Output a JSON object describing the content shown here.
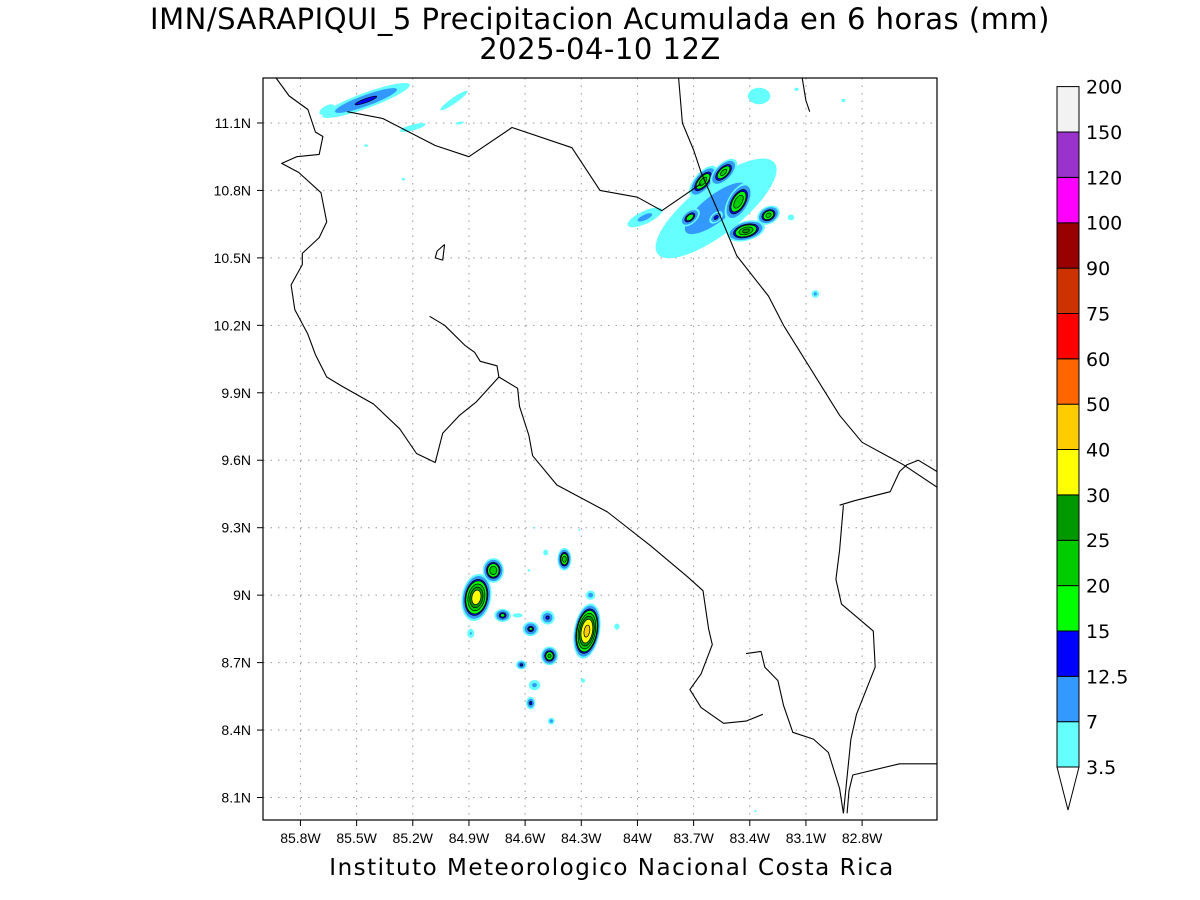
{
  "title": "IMN/SARAPIQUI_5 Precipitacion Acumulada en 6 horas (mm)",
  "subtitle": "2025-04-10 12Z",
  "footer": "Instituto Meteorologico Nacional Costa Rica",
  "map": {
    "lon_range": [
      -86.0,
      -82.4
    ],
    "lat_range": [
      8.0,
      11.3
    ],
    "lon_ticks": [
      {
        "value": -85.8,
        "label": "85.8W"
      },
      {
        "value": -85.5,
        "label": "85.5W"
      },
      {
        "value": -85.2,
        "label": "85.2W"
      },
      {
        "value": -84.9,
        "label": "84.9W"
      },
      {
        "value": -84.6,
        "label": "84.6W"
      },
      {
        "value": -84.3,
        "label": "84.3W"
      },
      {
        "value": -84.0,
        "label": "84W"
      },
      {
        "value": -83.7,
        "label": "83.7W"
      },
      {
        "value": -83.4,
        "label": "83.4W"
      },
      {
        "value": -83.1,
        "label": "83.1W"
      },
      {
        "value": -82.8,
        "label": "82.8W"
      }
    ],
    "lat_ticks": [
      {
        "value": 8.1,
        "label": "8.1N"
      },
      {
        "value": 8.4,
        "label": "8.4N"
      },
      {
        "value": 8.7,
        "label": "8.7N"
      },
      {
        "value": 9.0,
        "label": "9N"
      },
      {
        "value": 9.3,
        "label": "9.3N"
      },
      {
        "value": 9.6,
        "label": "9.6N"
      },
      {
        "value": 9.9,
        "label": "9.9N"
      },
      {
        "value": 10.2,
        "label": "10.2N"
      },
      {
        "value": 10.5,
        "label": "10.5N"
      },
      {
        "value": 10.8,
        "label": "10.8N"
      },
      {
        "value": 11.1,
        "label": "11.1N"
      }
    ],
    "grid": "dotted",
    "coastline": [
      [
        [
          -85.93,
          11.3
        ],
        [
          -85.86,
          11.22
        ],
        [
          -85.76,
          11.16
        ],
        [
          -85.72,
          11.06
        ],
        [
          -85.68,
          11.04
        ],
        [
          -85.7,
          10.96
        ],
        [
          -85.82,
          10.95
        ],
        [
          -85.9,
          10.92
        ],
        [
          -85.81,
          10.88
        ],
        [
          -85.69,
          10.79
        ],
        [
          -85.66,
          10.66
        ],
        [
          -85.7,
          10.59
        ],
        [
          -85.79,
          10.52
        ],
        [
          -85.79,
          10.47
        ],
        [
          -85.85,
          10.38
        ],
        [
          -85.83,
          10.27
        ],
        [
          -85.76,
          10.16
        ],
        [
          -85.72,
          10.07
        ],
        [
          -85.66,
          9.97
        ],
        [
          -85.58,
          9.93
        ],
        [
          -85.41,
          9.85
        ],
        [
          -85.27,
          9.74
        ],
        [
          -85.18,
          9.63
        ],
        [
          -85.08,
          9.59
        ],
        [
          -85.04,
          9.72
        ],
        [
          -84.95,
          9.8
        ],
        [
          -84.86,
          9.86
        ],
        [
          -84.74,
          9.97
        ],
        [
          -84.75,
          10.02
        ],
        [
          -84.84,
          10.04
        ],
        [
          -84.87,
          10.08
        ],
        [
          -84.92,
          10.11
        ],
        [
          -85.03,
          10.2
        ],
        [
          -85.11,
          10.24
        ]
      ],
      [
        [
          -84.74,
          9.97
        ],
        [
          -84.64,
          9.92
        ],
        [
          -84.63,
          9.84
        ],
        [
          -84.58,
          9.71
        ],
        [
          -84.56,
          9.62
        ],
        [
          -84.43,
          9.49
        ],
        [
          -84.16,
          9.37
        ],
        [
          -83.93,
          9.22
        ],
        [
          -83.73,
          9.08
        ],
        [
          -83.65,
          9.02
        ],
        [
          -83.62,
          8.85
        ],
        [
          -83.6,
          8.78
        ],
        [
          -83.66,
          8.65
        ],
        [
          -83.72,
          8.58
        ],
        [
          -83.66,
          8.5
        ],
        [
          -83.54,
          8.43
        ],
        [
          -83.42,
          8.44
        ],
        [
          -83.33,
          8.47
        ]
      ],
      [
        [
          -83.42,
          8.74
        ],
        [
          -83.34,
          8.75
        ],
        [
          -83.32,
          8.68
        ],
        [
          -83.25,
          8.62
        ],
        [
          -83.22,
          8.51
        ],
        [
          -83.17,
          8.39
        ],
        [
          -83.06,
          8.36
        ],
        [
          -82.98,
          8.3
        ],
        [
          -82.92,
          8.14
        ],
        [
          -82.9,
          8.03
        ]
      ],
      [
        [
          -82.88,
          8.03
        ],
        [
          -82.87,
          8.13
        ],
        [
          -82.85,
          8.2
        ],
        [
          -82.6,
          8.25
        ],
        [
          -82.4,
          8.25
        ]
      ],
      [
        [
          -82.4,
          9.55
        ],
        [
          -82.5,
          9.6
        ],
        [
          -82.56,
          9.58
        ],
        [
          -82.6,
          9.55
        ],
        [
          -82.65,
          9.46
        ],
        [
          -82.84,
          9.42
        ],
        [
          -82.92,
          9.4
        ]
      ],
      [
        [
          -83.12,
          11.3
        ],
        [
          -83.1,
          11.2
        ],
        [
          -83.08,
          11.15
        ]
      ],
      [
        [
          -83.78,
          11.3
        ],
        [
          -83.76,
          11.1
        ],
        [
          -83.7,
          10.98
        ],
        [
          -83.66,
          10.88
        ],
        [
          -83.55,
          10.67
        ],
        [
          -83.47,
          10.51
        ],
        [
          -83.3,
          10.33
        ],
        [
          -83.22,
          10.2
        ],
        [
          -82.92,
          9.8
        ],
        [
          -82.8,
          9.68
        ],
        [
          -82.58,
          9.58
        ],
        [
          -82.4,
          9.48
        ]
      ],
      [
        [
          -85.03,
          10.56
        ],
        [
          -85.07,
          10.53
        ],
        [
          -85.08,
          10.5
        ],
        [
          -85.04,
          10.49
        ],
        [
          -85.03,
          10.56
        ]
      ]
    ],
    "borders": [
      [
        [
          -85.55,
          11.15
        ],
        [
          -85.36,
          11.12
        ],
        [
          -85.08,
          11.0
        ],
        [
          -84.9,
          10.95
        ],
        [
          -84.67,
          11.08
        ],
        [
          -84.35,
          10.99
        ],
        [
          -84.2,
          10.8
        ],
        [
          -84.0,
          10.77
        ],
        [
          -83.87,
          10.71
        ],
        [
          -83.66,
          10.83
        ]
      ],
      [
        [
          -82.9,
          9.4
        ],
        [
          -82.92,
          9.2
        ],
        [
          -82.94,
          9.07
        ],
        [
          -82.91,
          8.96
        ],
        [
          -82.74,
          8.84
        ],
        [
          -82.73,
          8.68
        ],
        [
          -82.83,
          8.47
        ],
        [
          -82.86,
          8.36
        ],
        [
          -82.9,
          8.03
        ]
      ]
    ]
  },
  "precipitation": {
    "units": "mm",
    "levels": [
      3.5,
      7,
      12.5,
      15,
      20,
      25,
      30,
      40,
      50,
      60,
      75,
      90,
      100,
      120,
      150,
      200
    ],
    "colors": [
      "#66ffff",
      "#3399ff",
      "#0000ff",
      "#00ff00",
      "#00cc00",
      "#009900",
      "#ffff00",
      "#ffcc00",
      "#ff6600",
      "#ff0000",
      "#cc3300",
      "#990000",
      "#ff00ff",
      "#9933cc",
      "#f2f2f2",
      "#999999"
    ],
    "cells": [
      {
        "lon": -85.45,
        "lat": 11.2,
        "rx": 60,
        "ry": 10,
        "rot": -20,
        "max": 13
      },
      {
        "lon": -85.66,
        "lat": 11.16,
        "rx": 20,
        "ry": 9,
        "rot": -30,
        "max": 5
      },
      {
        "lon": -85.2,
        "lat": 11.08,
        "rx": 32,
        "ry": 7,
        "rot": -15,
        "max": 5
      },
      {
        "lon": -84.98,
        "lat": 11.2,
        "rx": 40,
        "ry": 7,
        "rot": -35,
        "max": 5
      },
      {
        "lon": -84.95,
        "lat": 11.1,
        "rx": 16,
        "ry": 5,
        "rot": -10,
        "max": 4
      },
      {
        "lon": -85.45,
        "lat": 11.0,
        "rx": 7,
        "ry": 5,
        "rot": 0,
        "max": 4
      },
      {
        "lon": -85.25,
        "lat": 10.85,
        "rx": 6,
        "ry": 5,
        "rot": 0,
        "max": 4
      },
      {
        "lon": -83.35,
        "lat": 11.22,
        "rx": 22,
        "ry": 16,
        "rot": 0,
        "max": 6
      },
      {
        "lon": -83.15,
        "lat": 11.25,
        "rx": 8,
        "ry": 6,
        "rot": 0,
        "max": 4
      },
      {
        "lon": -82.9,
        "lat": 11.2,
        "rx": 8,
        "ry": 6,
        "rot": 0,
        "max": 4
      },
      {
        "lon": -83.58,
        "lat": 10.72,
        "rx": 110,
        "ry": 38,
        "rot": -38,
        "max": 9
      },
      {
        "lon": -83.65,
        "lat": 10.84,
        "rx": 22,
        "ry": 10,
        "rot": -50,
        "max": 22
      },
      {
        "lon": -83.54,
        "lat": 10.88,
        "rx": 20,
        "ry": 10,
        "rot": -45,
        "max": 21
      },
      {
        "lon": -83.46,
        "lat": 10.75,
        "rx": 24,
        "ry": 12,
        "rot": -60,
        "max": 24
      },
      {
        "lon": -83.42,
        "lat": 10.62,
        "rx": 22,
        "ry": 11,
        "rot": -15,
        "max": 25
      },
      {
        "lon": -83.3,
        "lat": 10.69,
        "rx": 14,
        "ry": 10,
        "rot": -30,
        "max": 21
      },
      {
        "lon": -83.72,
        "lat": 10.68,
        "rx": 14,
        "ry": 8,
        "rot": -40,
        "max": 18
      },
      {
        "lon": -83.58,
        "lat": 10.68,
        "rx": 10,
        "ry": 6,
        "rot": -40,
        "max": 14
      },
      {
        "lon": -83.96,
        "lat": 10.68,
        "rx": 30,
        "ry": 10,
        "rot": -25,
        "max": 8
      },
      {
        "lon": -83.18,
        "lat": 10.68,
        "rx": 8,
        "ry": 7,
        "rot": 0,
        "max": 5
      },
      {
        "lon": -83.05,
        "lat": 10.34,
        "rx": 6,
        "ry": 6,
        "rot": 0,
        "max": 8
      },
      {
        "lon": -83.3,
        "lat": 10.85,
        "rx": 16,
        "ry": 8,
        "rot": -35,
        "max": 6
      },
      {
        "lon": -84.86,
        "lat": 8.99,
        "rx": 16,
        "ry": 26,
        "rot": 10,
        "max": 35
      },
      {
        "lon": -84.77,
        "lat": 9.11,
        "rx": 12,
        "ry": 14,
        "rot": 0,
        "max": 24
      },
      {
        "lon": -84.72,
        "lat": 8.91,
        "rx": 10,
        "ry": 8,
        "rot": 0,
        "max": 16
      },
      {
        "lon": -84.57,
        "lat": 8.85,
        "rx": 10,
        "ry": 9,
        "rot": 0,
        "max": 15
      },
      {
        "lon": -84.48,
        "lat": 8.9,
        "rx": 9,
        "ry": 9,
        "rot": 0,
        "max": 13
      },
      {
        "lon": -84.47,
        "lat": 8.73,
        "rx": 10,
        "ry": 11,
        "rot": 0,
        "max": 20
      },
      {
        "lon": -84.39,
        "lat": 9.16,
        "rx": 8,
        "ry": 13,
        "rot": 0,
        "max": 22
      },
      {
        "lon": -84.27,
        "lat": 8.84,
        "rx": 14,
        "ry": 30,
        "rot": 10,
        "max": 42
      },
      {
        "lon": -84.25,
        "lat": 9.0,
        "rx": 7,
        "ry": 7,
        "rot": 0,
        "max": 9
      },
      {
        "lon": -84.11,
        "lat": 8.86,
        "rx": 5,
        "ry": 6,
        "rot": 0,
        "max": 6
      },
      {
        "lon": -84.62,
        "lat": 8.69,
        "rx": 7,
        "ry": 6,
        "rot": 0,
        "max": 13
      },
      {
        "lon": -84.55,
        "lat": 8.6,
        "rx": 9,
        "ry": 8,
        "rot": 0,
        "max": 8
      },
      {
        "lon": -84.57,
        "lat": 8.52,
        "rx": 6,
        "ry": 8,
        "rot": 0,
        "max": 13
      },
      {
        "lon": -84.46,
        "lat": 8.44,
        "rx": 5,
        "ry": 5,
        "rot": 0,
        "max": 9
      },
      {
        "lon": -84.29,
        "lat": 8.62,
        "rx": 5,
        "ry": 5,
        "rot": 0,
        "max": 5
      },
      {
        "lon": -84.49,
        "lat": 9.19,
        "rx": 6,
        "ry": 7,
        "rot": 0,
        "max": 5
      },
      {
        "lon": -84.58,
        "lat": 9.11,
        "rx": 5,
        "ry": 5,
        "rot": 0,
        "max": 4
      },
      {
        "lon": -84.89,
        "lat": 8.83,
        "rx": 6,
        "ry": 8,
        "rot": 0,
        "max": 7
      },
      {
        "lon": -84.64,
        "lat": 8.91,
        "rx": 12,
        "ry": 5,
        "rot": 0,
        "max": 5
      },
      {
        "lon": -84.55,
        "lat": 9.3,
        "rx": 3,
        "ry": 4,
        "rot": 0,
        "max": 4
      },
      {
        "lon": -84.31,
        "lat": 9.29,
        "rx": 3,
        "ry": 4,
        "rot": 0,
        "max": 4
      },
      {
        "lon": -83.37,
        "lat": 8.04,
        "rx": 4,
        "ry": 4,
        "rot": 0,
        "max": 4
      }
    ]
  },
  "colorbar": {
    "tick_labels": [
      "3.5",
      "7",
      "12.5",
      "15",
      "20",
      "25",
      "30",
      "40",
      "50",
      "60",
      "75",
      "90",
      "100",
      "120",
      "150",
      "200"
    ]
  }
}
